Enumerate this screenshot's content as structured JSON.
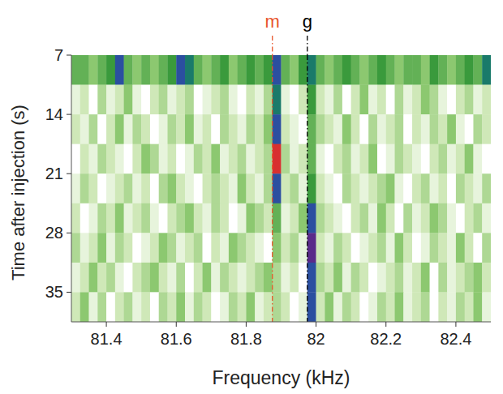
{
  "chart_data": {
    "type": "heatmap",
    "x_label": "Frequency (kHz)",
    "y_label": "Time after injection (s)",
    "xlim": [
      81.3,
      82.5
    ],
    "ylim": [
      7,
      38.5
    ],
    "xticks": [
      81.4,
      81.6,
      81.8,
      82,
      82.2,
      82.4
    ],
    "yticks": [
      7,
      14,
      21,
      28,
      35
    ],
    "x_edges": [
      81.3,
      81.325,
      81.35,
      81.375,
      81.4,
      81.425,
      81.45,
      81.475,
      81.5,
      81.525,
      81.55,
      81.575,
      81.6,
      81.625,
      81.65,
      81.675,
      81.7,
      81.725,
      81.75,
      81.775,
      81.8,
      81.825,
      81.85,
      81.875,
      81.9,
      81.925,
      81.95,
      81.975,
      82,
      82.025,
      82.05,
      82.075,
      82.1,
      82.125,
      82.15,
      82.175,
      82.2,
      82.225,
      82.25,
      82.275,
      82.3,
      82.325,
      82.35,
      82.375,
      82.4,
      82.425,
      82.45,
      82.475,
      82.5
    ],
    "y_edges": [
      7,
      10.5,
      14,
      17.5,
      21,
      24.5,
      28,
      31.5,
      35,
      38.5
    ],
    "zlim": [
      0,
      10
    ],
    "z": [
      [
        5,
        5,
        4,
        5,
        6,
        8,
        5,
        4,
        5,
        4,
        5,
        6,
        8,
        7,
        5,
        4,
        5,
        6,
        4,
        5,
        6,
        5,
        6,
        8,
        5,
        4,
        6,
        7,
        5,
        4,
        5,
        6,
        5,
        4,
        5,
        6,
        5,
        4,
        5,
        5,
        4,
        6,
        5,
        4,
        5,
        6,
        5,
        7
      ],
      [
        1,
        2,
        0,
        3,
        1,
        2,
        4,
        1,
        0,
        2,
        3,
        1,
        2,
        3,
        0,
        1,
        2,
        3,
        1,
        0,
        2,
        1,
        3,
        7,
        1,
        0,
        2,
        6,
        2,
        1,
        3,
        0,
        2,
        4,
        1,
        2,
        0,
        3,
        1,
        2,
        4,
        3,
        1,
        0,
        2,
        3,
        1,
        2
      ],
      [
        2,
        1,
        3,
        0,
        2,
        4,
        1,
        3,
        2,
        0,
        1,
        3,
        2,
        4,
        1,
        2,
        0,
        3,
        2,
        1,
        3,
        2,
        4,
        8,
        2,
        1,
        0,
        5,
        3,
        2,
        1,
        4,
        2,
        0,
        3,
        1,
        2,
        3,
        0,
        2,
        1,
        3,
        2,
        4,
        1,
        0,
        3,
        2
      ],
      [
        0,
        2,
        1,
        3,
        2,
        1,
        0,
        2,
        4,
        3,
        1,
        2,
        0,
        1,
        3,
        2,
        4,
        1,
        2,
        3,
        1,
        2,
        3,
        10,
        3,
        1,
        2,
        5,
        1,
        0,
        2,
        3,
        1,
        2,
        4,
        0,
        1,
        3,
        2,
        1,
        0,
        2,
        3,
        1,
        2,
        4,
        1,
        0
      ],
      [
        1,
        3,
        2,
        0,
        1,
        2,
        3,
        1,
        2,
        0,
        3,
        4,
        2,
        1,
        0,
        2,
        3,
        2,
        1,
        4,
        2,
        1,
        3,
        8,
        2,
        3,
        1,
        6,
        2,
        1,
        0,
        3,
        2,
        1,
        2,
        3,
        4,
        1,
        0,
        2,
        3,
        1,
        2,
        0,
        3,
        2,
        1,
        3
      ],
      [
        2,
        0,
        1,
        3,
        2,
        4,
        1,
        2,
        3,
        1,
        0,
        2,
        3,
        4,
        2,
        1,
        3,
        2,
        0,
        1,
        4,
        3,
        2,
        5,
        1,
        2,
        4,
        8,
        3,
        2,
        1,
        0,
        2,
        3,
        1,
        4,
        2,
        0,
        3,
        1,
        2,
        4,
        3,
        1,
        0,
        2,
        3,
        1
      ],
      [
        3,
        1,
        2,
        4,
        1,
        3,
        2,
        0,
        1,
        2,
        4,
        3,
        1,
        2,
        3,
        0,
        2,
        1,
        4,
        3,
        2,
        1,
        0,
        4,
        2,
        3,
        1,
        9,
        2,
        1,
        3,
        2,
        0,
        1,
        2,
        3,
        1,
        4,
        2,
        0,
        1,
        3,
        2,
        1,
        4,
        2,
        0,
        3
      ],
      [
        1,
        2,
        4,
        2,
        3,
        1,
        0,
        2,
        3,
        4,
        2,
        1,
        3,
        0,
        2,
        4,
        1,
        3,
        2,
        1,
        2,
        3,
        4,
        3,
        1,
        2,
        0,
        8,
        3,
        2,
        4,
        1,
        3,
        2,
        0,
        1,
        2,
        3,
        1,
        2,
        4,
        0,
        3,
        1,
        2,
        3,
        4,
        2
      ],
      [
        2,
        4,
        1,
        3,
        0,
        2,
        3,
        1,
        2,
        0,
        3,
        2,
        4,
        1,
        3,
        2,
        0,
        1,
        3,
        2,
        4,
        1,
        2,
        3,
        2,
        0,
        1,
        8,
        2,
        4,
        1,
        3,
        2,
        0,
        1,
        3,
        2,
        4,
        1,
        2,
        3,
        0,
        2,
        1,
        3,
        2,
        4,
        1
      ]
    ],
    "annotations": [
      {
        "label": "m",
        "x": 81.875,
        "color": "#e8552b",
        "line_style": "dashdot"
      },
      {
        "label": "g",
        "x": 81.975,
        "color": "#000000",
        "line_style": "dashdot"
      }
    ]
  }
}
